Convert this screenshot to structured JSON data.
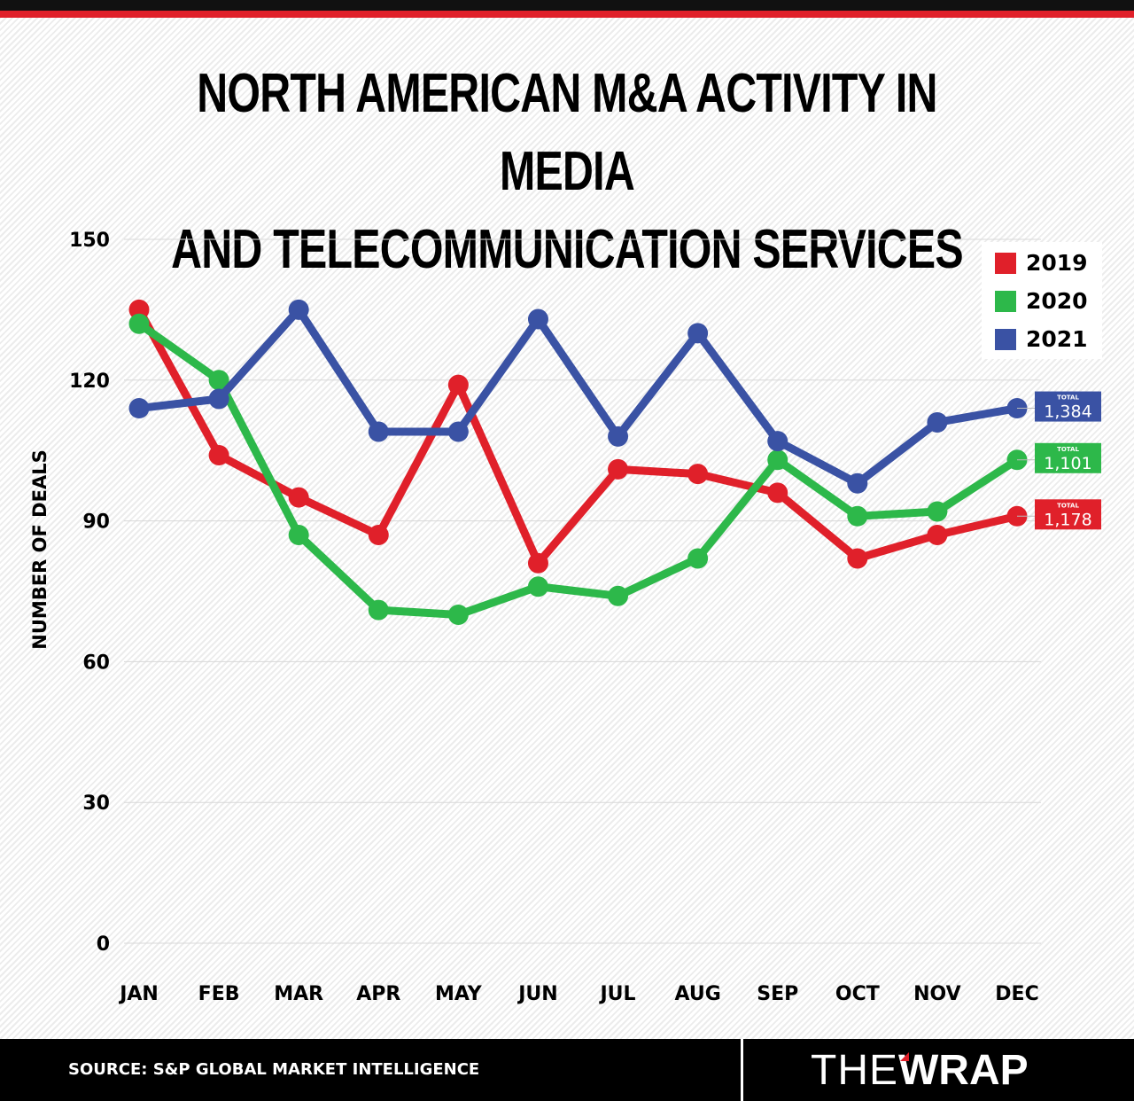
{
  "chart_data": {
    "type": "line",
    "title": "NORTH AMERICAN M&A ACTIVITY IN MEDIA AND TELECOMMUNICATION SERVICES",
    "title_lines": [
      "NORTH AMERICAN M&A ACTIVITY IN MEDIA",
      "AND TELECOMMUNICATION SERVICES"
    ],
    "xlabel": "",
    "ylabel": "NUMBER OF DEALS",
    "categories": [
      "JAN",
      "FEB",
      "MAR",
      "APR",
      "MAY",
      "JUN",
      "JUL",
      "AUG",
      "SEP",
      "OCT",
      "NOV",
      "DEC"
    ],
    "ylim": [
      0,
      150
    ],
    "yticks": [
      0,
      30,
      60,
      90,
      120,
      150
    ],
    "grid": true,
    "legend_position": "top-right",
    "series": [
      {
        "name": "2019",
        "color": "#e0202a",
        "values": [
          135,
          104,
          95,
          87,
          119,
          81,
          101,
          100,
          96,
          82,
          87,
          91
        ],
        "total_label": "TOTAL",
        "total": "1,178"
      },
      {
        "name": "2020",
        "color": "#2db84a",
        "values": [
          132,
          120,
          87,
          71,
          70,
          76,
          74,
          82,
          103,
          91,
          92,
          103
        ],
        "total_label": "TOTAL",
        "total": "1,101"
      },
      {
        "name": "2021",
        "color": "#3a52a4",
        "values": [
          114,
          116,
          135,
          109,
          109,
          133,
          108,
          130,
          107,
          98,
          111,
          114
        ],
        "total_label": "TOTAL",
        "total": "1,384"
      }
    ]
  },
  "footer": {
    "source": "SOURCE: S&P GLOBAL MARKET INTELLIGENCE",
    "logo_text": "THEWRAP",
    "logo_thin": "THE",
    "logo_bold": "WRAP"
  }
}
